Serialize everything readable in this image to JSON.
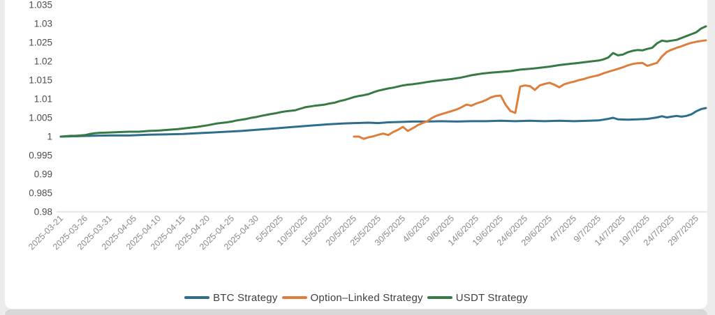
{
  "page": {
    "background": "#ececec",
    "card_background": "#ffffff",
    "bottom_band_color": "#d7d7d7",
    "axis_line_color": "#d9d9d9",
    "y_label_color": "#4d4d4d",
    "x_label_color": "#8a8a8a",
    "legend_text_color": "#404040"
  },
  "chart_data": {
    "type": "line",
    "title": "",
    "xlabel": "",
    "ylabel": "",
    "grid": false,
    "legend_position": "bottom",
    "y_axis": {
      "range": [
        0.98,
        1.035
      ],
      "ticks": [
        {
          "label": "1.035",
          "value": 1.035
        },
        {
          "label": "1.03",
          "value": 1.03
        },
        {
          "label": "1.025",
          "value": 1.025
        },
        {
          "label": "1.02",
          "value": 1.02
        },
        {
          "label": "1.015",
          "value": 1.015
        },
        {
          "label": "1.01",
          "value": 1.01
        },
        {
          "label": "1.005",
          "value": 1.005
        },
        {
          "label": "1",
          "value": 1.0
        },
        {
          "label": "0.995",
          "value": 0.995
        },
        {
          "label": "0.99",
          "value": 0.99
        },
        {
          "label": "0.985",
          "value": 0.985
        },
        {
          "label": "0.98",
          "value": 0.98
        }
      ]
    },
    "x_axis": {
      "unit": "days-since-2025-03-21",
      "range_days": [
        0,
        132
      ],
      "ticks": [
        {
          "label": "2025-03-21",
          "day": 0
        },
        {
          "label": "2025-03-26",
          "day": 5
        },
        {
          "label": "2025-03-31",
          "day": 10
        },
        {
          "label": "2025-04-05",
          "day": 15
        },
        {
          "label": "2025-04-10",
          "day": 20
        },
        {
          "label": "2025-04-15",
          "day": 25
        },
        {
          "label": "2025-04-20",
          "day": 30
        },
        {
          "label": "2025-04-25",
          "day": 35
        },
        {
          "label": "2025-04-30",
          "day": 40
        },
        {
          "label": "5/5/2025",
          "day": 45
        },
        {
          "label": "10/5/2025",
          "day": 50
        },
        {
          "label": "15/5/2025",
          "day": 55
        },
        {
          "label": "20/5/2025",
          "day": 60
        },
        {
          "label": "25/5/2025",
          "day": 65
        },
        {
          "label": "30/5/2025",
          "day": 70
        },
        {
          "label": "4/6/2025",
          "day": 75
        },
        {
          "label": "9/6/2025",
          "day": 80
        },
        {
          "label": "14/6/2025",
          "day": 85
        },
        {
          "label": "19/6/2025",
          "day": 90
        },
        {
          "label": "24/6/2025",
          "day": 95
        },
        {
          "label": "29/6/2025",
          "day": 100
        },
        {
          "label": "4/7/2025",
          "day": 105
        },
        {
          "label": "9/7/2025",
          "day": 110
        },
        {
          "label": "14/7/2025",
          "day": 115
        },
        {
          "label": "19/7/2025",
          "day": 120
        },
        {
          "label": "24/7/2025",
          "day": 125
        },
        {
          "label": "29/7/2025",
          "day": 130
        }
      ]
    },
    "series": [
      {
        "name": "BTC Strategy",
        "color": "#2e6d8c",
        "points": [
          [
            0,
            1.0
          ],
          [
            3,
            1.0001
          ],
          [
            6,
            1.0002
          ],
          [
            10,
            1.0003
          ],
          [
            14,
            1.0003
          ],
          [
            18,
            1.0005
          ],
          [
            22,
            1.0006
          ],
          [
            25,
            1.0007
          ],
          [
            28,
            1.0009
          ],
          [
            31,
            1.0011
          ],
          [
            34,
            1.0013
          ],
          [
            37,
            1.0015
          ],
          [
            40,
            1.0018
          ],
          [
            43,
            1.0021
          ],
          [
            46,
            1.0024
          ],
          [
            49,
            1.0027
          ],
          [
            52,
            1.003
          ],
          [
            55,
            1.0033
          ],
          [
            58,
            1.0035
          ],
          [
            60,
            1.0036
          ],
          [
            63,
            1.0037
          ],
          [
            65,
            1.0036
          ],
          [
            67,
            1.0038
          ],
          [
            70,
            1.0039
          ],
          [
            72,
            1.004
          ],
          [
            75,
            1.004
          ],
          [
            78,
            1.0041
          ],
          [
            81,
            1.004
          ],
          [
            84,
            1.0041
          ],
          [
            87,
            1.0041
          ],
          [
            90,
            1.0042
          ],
          [
            93,
            1.0041
          ],
          [
            96,
            1.0042
          ],
          [
            99,
            1.0041
          ],
          [
            102,
            1.0042
          ],
          [
            105,
            1.0041
          ],
          [
            108,
            1.0042
          ],
          [
            110,
            1.0043
          ],
          [
            112,
            1.0047
          ],
          [
            113,
            1.005
          ],
          [
            114,
            1.0046
          ],
          [
            116,
            1.0045
          ],
          [
            118,
            1.0046
          ],
          [
            120,
            1.0047
          ],
          [
            122,
            1.0051
          ],
          [
            123,
            1.0054
          ],
          [
            124,
            1.0051
          ],
          [
            125,
            1.0053
          ],
          [
            126,
            1.0055
          ],
          [
            127,
            1.0053
          ],
          [
            128,
            1.0055
          ],
          [
            129,
            1.0059
          ],
          [
            130,
            1.0067
          ],
          [
            131,
            1.0073
          ],
          [
            132,
            1.0076
          ]
        ]
      },
      {
        "name": "Option–Linked Strategy",
        "color": "#dd7e3d",
        "points": [
          [
            60,
            1.0
          ],
          [
            61,
            1.0
          ],
          [
            62,
            0.9994
          ],
          [
            63,
            0.9998
          ],
          [
            64,
            1.0001
          ],
          [
            65,
            1.0005
          ],
          [
            66,
            1.0008
          ],
          [
            67,
            1.0004
          ],
          [
            68,
            1.0012
          ],
          [
            69,
            1.0018
          ],
          [
            70,
            1.0026
          ],
          [
            71,
            1.0015
          ],
          [
            72,
            1.0022
          ],
          [
            73,
            1.003
          ],
          [
            74,
            1.0036
          ],
          [
            75,
            1.0041
          ],
          [
            76,
            1.005
          ],
          [
            77,
            1.0056
          ],
          [
            78,
            1.006
          ],
          [
            79,
            1.0064
          ],
          [
            80,
            1.0068
          ],
          [
            81,
            1.0072
          ],
          [
            82,
            1.0078
          ],
          [
            83,
            1.0085
          ],
          [
            84,
            1.0082
          ],
          [
            85,
            1.0088
          ],
          [
            86,
            1.0092
          ],
          [
            87,
            1.0097
          ],
          [
            88,
            1.0104
          ],
          [
            89,
            1.0108
          ],
          [
            90,
            1.0109
          ],
          [
            91,
            1.0085
          ],
          [
            92,
            1.0068
          ],
          [
            93,
            1.0063
          ],
          [
            94,
            1.0133
          ],
          [
            95,
            1.0136
          ],
          [
            96,
            1.0134
          ],
          [
            97,
            1.0124
          ],
          [
            98,
            1.0136
          ],
          [
            99,
            1.014
          ],
          [
            100,
            1.0143
          ],
          [
            101,
            1.0138
          ],
          [
            102,
            1.0131
          ],
          [
            103,
            1.0139
          ],
          [
            104,
            1.0143
          ],
          [
            105,
            1.0146
          ],
          [
            106,
            1.015
          ],
          [
            107,
            1.0153
          ],
          [
            108,
            1.0157
          ],
          [
            109,
            1.016
          ],
          [
            110,
            1.0163
          ],
          [
            111,
            1.0168
          ],
          [
            112,
            1.0172
          ],
          [
            113,
            1.0176
          ],
          [
            114,
            1.018
          ],
          [
            115,
            1.0184
          ],
          [
            116,
            1.0189
          ],
          [
            117,
            1.0193
          ],
          [
            118,
            1.0195
          ],
          [
            119,
            1.0196
          ],
          [
            120,
            1.0188
          ],
          [
            121,
            1.0192
          ],
          [
            122,
            1.0196
          ],
          [
            123,
            1.0213
          ],
          [
            124,
            1.0225
          ],
          [
            125,
            1.0231
          ],
          [
            126,
            1.0236
          ],
          [
            127,
            1.024
          ],
          [
            128,
            1.0245
          ],
          [
            129,
            1.0249
          ],
          [
            130,
            1.0252
          ],
          [
            131,
            1.0254
          ],
          [
            132,
            1.0256
          ]
        ]
      },
      {
        "name": "USDT Strategy",
        "color": "#377a43",
        "points": [
          [
            0,
            1.0
          ],
          [
            1,
            1.0001
          ],
          [
            2,
            1.0002
          ],
          [
            3,
            1.0002
          ],
          [
            4,
            1.0003
          ],
          [
            5,
            1.0004
          ],
          [
            6,
            1.0007
          ],
          [
            7,
            1.0009
          ],
          [
            8,
            1.001
          ],
          [
            10,
            1.0011
          ],
          [
            12,
            1.0012
          ],
          [
            14,
            1.0013
          ],
          [
            16,
            1.0013
          ],
          [
            18,
            1.0015
          ],
          [
            20,
            1.0016
          ],
          [
            22,
            1.0018
          ],
          [
            24,
            1.002
          ],
          [
            26,
            1.0023
          ],
          [
            28,
            1.0026
          ],
          [
            30,
            1.003
          ],
          [
            32,
            1.0035
          ],
          [
            34,
            1.0038
          ],
          [
            35,
            1.004
          ],
          [
            36,
            1.0043
          ],
          [
            38,
            1.0047
          ],
          [
            39,
            1.005
          ],
          [
            40,
            1.0052
          ],
          [
            41,
            1.0055
          ],
          [
            43,
            1.006
          ],
          [
            44,
            1.0062
          ],
          [
            45,
            1.0065
          ],
          [
            46,
            1.0067
          ],
          [
            48,
            1.007
          ],
          [
            49,
            1.0074
          ],
          [
            50,
            1.0078
          ],
          [
            51,
            1.008
          ],
          [
            52,
            1.0082
          ],
          [
            54,
            1.0085
          ],
          [
            55,
            1.0088
          ],
          [
            56,
            1.009
          ],
          [
            57,
            1.0094
          ],
          [
            58,
            1.0097
          ],
          [
            59,
            1.0101
          ],
          [
            60,
            1.0105
          ],
          [
            61,
            1.0108
          ],
          [
            62,
            1.011
          ],
          [
            63,
            1.0113
          ],
          [
            64,
            1.0118
          ],
          [
            65,
            1.0122
          ],
          [
            66,
            1.0125
          ],
          [
            67,
            1.0128
          ],
          [
            68,
            1.013
          ],
          [
            69,
            1.0133
          ],
          [
            70,
            1.0136
          ],
          [
            71,
            1.0138
          ],
          [
            72,
            1.0139
          ],
          [
            73,
            1.0141
          ],
          [
            74,
            1.0143
          ],
          [
            75,
            1.0145
          ],
          [
            76,
            1.0147
          ],
          [
            78,
            1.015
          ],
          [
            80,
            1.0153
          ],
          [
            82,
            1.0157
          ],
          [
            83,
            1.016
          ],
          [
            84,
            1.0163
          ],
          [
            85,
            1.0165
          ],
          [
            86,
            1.0167
          ],
          [
            88,
            1.017
          ],
          [
            90,
            1.0172
          ],
          [
            92,
            1.0174
          ],
          [
            94,
            1.0178
          ],
          [
            96,
            1.018
          ],
          [
            98,
            1.0183
          ],
          [
            100,
            1.0186
          ],
          [
            102,
            1.019
          ],
          [
            104,
            1.0193
          ],
          [
            106,
            1.0196
          ],
          [
            108,
            1.0199
          ],
          [
            110,
            1.0202
          ],
          [
            111,
            1.0205
          ],
          [
            112,
            1.021
          ],
          [
            113,
            1.0222
          ],
          [
            114,
            1.0216
          ],
          [
            115,
            1.0218
          ],
          [
            116,
            1.0224
          ],
          [
            117,
            1.0228
          ],
          [
            118,
            1.023
          ],
          [
            119,
            1.0229
          ],
          [
            120,
            1.0233
          ],
          [
            121,
            1.0236
          ],
          [
            122,
            1.0248
          ],
          [
            123,
            1.0255
          ],
          [
            124,
            1.0253
          ],
          [
            125,
            1.0255
          ],
          [
            126,
            1.0257
          ],
          [
            127,
            1.0262
          ],
          [
            128,
            1.0267
          ],
          [
            129,
            1.0272
          ],
          [
            130,
            1.0277
          ],
          [
            131,
            1.0287
          ],
          [
            132,
            1.0293
          ]
        ]
      }
    ]
  },
  "legend": {
    "items": [
      {
        "label": "BTC Strategy"
      },
      {
        "label": "Option–Linked Strategy"
      },
      {
        "label": "USDT Strategy"
      }
    ]
  }
}
